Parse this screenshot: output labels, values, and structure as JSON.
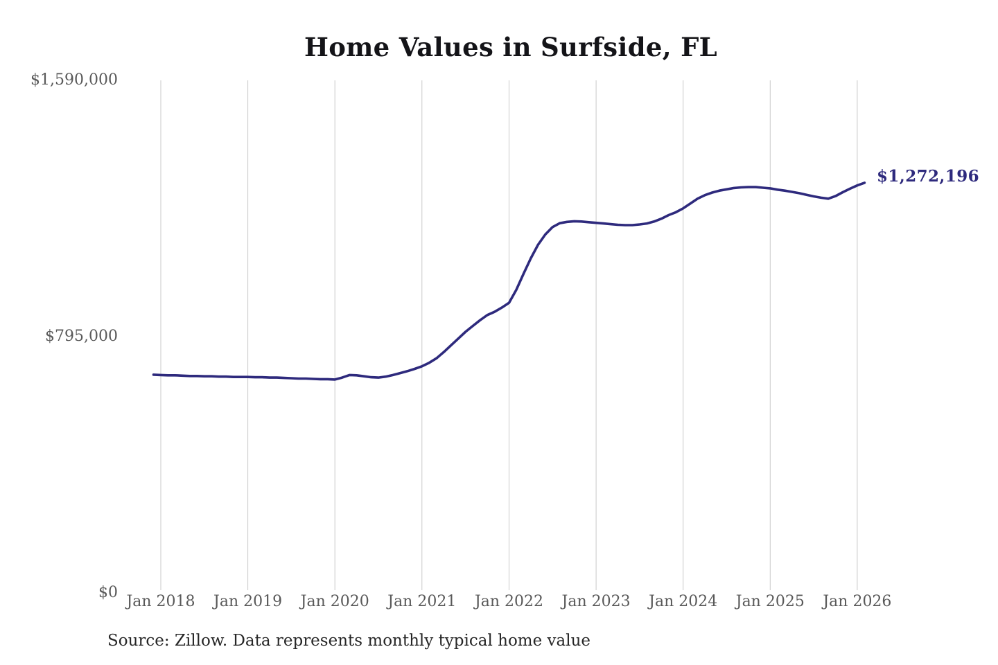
{
  "chart_data": {
    "type": "line",
    "title": "Home Values in Surfside, FL",
    "xlabel": "",
    "ylabel": "",
    "ylim": [
      0,
      1590000
    ],
    "grid": "vertical-only",
    "line_color": "#2e2a7d",
    "grid_color": "#c9c9c9",
    "axis_label_color": "#595959",
    "end_label": "$1,272,196",
    "end_value": 1272196,
    "source": "Source: Zillow. Data represents monthly typical home value",
    "y_ticks": [
      {
        "label": "$0",
        "value": 0
      },
      {
        "label": "$795,000",
        "value": 795000
      },
      {
        "label": "$1,590,000",
        "value": 1590000
      }
    ],
    "x_ticks": [
      {
        "label": "Jan 2018",
        "index": 1
      },
      {
        "label": "Jan 2019",
        "index": 13
      },
      {
        "label": "Jan 2020",
        "index": 25
      },
      {
        "label": "Jan 2021",
        "index": 37
      },
      {
        "label": "Jan 2022",
        "index": 49
      },
      {
        "label": "Jan 2023",
        "index": 61
      },
      {
        "label": "Jan 2024",
        "index": 73
      },
      {
        "label": "Jan 2025",
        "index": 85
      },
      {
        "label": "Jan 2026",
        "index": 97
      }
    ],
    "series": [
      {
        "name": "Typical home value (monthly)",
        "x": [
          "2017-12",
          "2018-01",
          "2018-02",
          "2018-03",
          "2018-04",
          "2018-05",
          "2018-06",
          "2018-07",
          "2018-08",
          "2018-09",
          "2018-10",
          "2018-11",
          "2018-12",
          "2019-01",
          "2019-02",
          "2019-03",
          "2019-04",
          "2019-05",
          "2019-06",
          "2019-07",
          "2019-08",
          "2019-09",
          "2019-10",
          "2019-11",
          "2019-12",
          "2020-01",
          "2020-02",
          "2020-03",
          "2020-04",
          "2020-05",
          "2020-06",
          "2020-07",
          "2020-08",
          "2020-09",
          "2020-10",
          "2020-11",
          "2020-12",
          "2021-01",
          "2021-02",
          "2021-03",
          "2021-04",
          "2021-05",
          "2021-06",
          "2021-07",
          "2021-08",
          "2021-09",
          "2021-10",
          "2021-11",
          "2021-12",
          "2022-01",
          "2022-02",
          "2022-03",
          "2022-04",
          "2022-05",
          "2022-06",
          "2022-07",
          "2022-08",
          "2022-09",
          "2022-10",
          "2022-11",
          "2022-12",
          "2023-01",
          "2023-02",
          "2023-03",
          "2023-04",
          "2023-05",
          "2023-06",
          "2023-07",
          "2023-08",
          "2023-09",
          "2023-10",
          "2023-11",
          "2023-12",
          "2024-01",
          "2024-02",
          "2024-03",
          "2024-04",
          "2024-05",
          "2024-06",
          "2024-07",
          "2024-08",
          "2024-09",
          "2024-10",
          "2024-11",
          "2024-12",
          "2025-01",
          "2025-02",
          "2025-03",
          "2025-04",
          "2025-05",
          "2025-06",
          "2025-07",
          "2025-08",
          "2025-09",
          "2025-10",
          "2025-11",
          "2025-12",
          "2026-01",
          "2026-02"
        ],
        "values": [
          677000,
          676000,
          675000,
          675000,
          674000,
          673000,
          673000,
          672000,
          672000,
          671000,
          671000,
          670000,
          670000,
          670000,
          669000,
          669000,
          668000,
          668000,
          667000,
          666000,
          665000,
          665000,
          664000,
          663000,
          663000,
          662000,
          668000,
          676000,
          675000,
          672000,
          669000,
          668000,
          671000,
          676000,
          682000,
          688000,
          695000,
          703000,
          714000,
          728000,
          747000,
          768000,
          789000,
          810000,
          828000,
          846000,
          862000,
          872000,
          885000,
          900000,
          940000,
          990000,
          1038000,
          1080000,
          1112000,
          1135000,
          1147000,
          1151000,
          1153000,
          1152000,
          1150000,
          1148000,
          1146000,
          1144000,
          1142000,
          1141000,
          1141000,
          1143000,
          1146000,
          1152000,
          1161000,
          1172000,
          1181000,
          1193000,
          1208000,
          1223000,
          1234000,
          1242000,
          1248000,
          1252000,
          1256000,
          1258000,
          1259000,
          1259000,
          1257000,
          1255000,
          1251000,
          1248000,
          1244000,
          1240000,
          1235000,
          1230000,
          1226000,
          1223000,
          1231000,
          1243000,
          1254000,
          1264000,
          1272196
        ]
      }
    ]
  }
}
